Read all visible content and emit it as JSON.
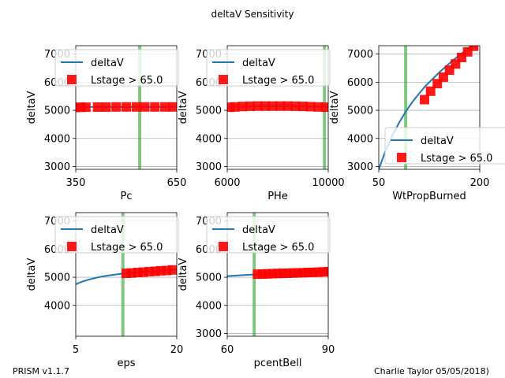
{
  "title": "deltaV Sensitivity",
  "footer_left": "PRISM v1.1.7",
  "footer_right": "Charlie Taylor 05/05/2018)",
  "colors": {
    "line": "#1f77b4",
    "marker": "#ff0000",
    "vline": "#2ca02c",
    "grid": "#b0b0b0"
  },
  "chart_data": [
    {
      "type": "line",
      "xlabel": "Pc",
      "ylabel": "deltaV",
      "xlim": [
        350,
        650
      ],
      "ylim": [
        2900,
        7300
      ],
      "xticks": [
        "350",
        "650"
      ],
      "yticks": [
        "3000",
        "4000",
        "5000",
        "6000",
        "7000"
      ],
      "grid": "horizontal",
      "legend_position": "top-left",
      "vline_x": 540,
      "series": [
        {
          "name": "deltaV",
          "kind": "line",
          "x": [
            350,
            400,
            450,
            500,
            550,
            600,
            650
          ],
          "y": [
            5120,
            5120,
            5120,
            5120,
            5120,
            5120,
            5120
          ]
        },
        {
          "name": "Lstage > 65.0",
          "kind": "marker",
          "x": [
            350,
            365,
            380,
            415,
            440,
            470,
            500,
            530,
            555,
            585,
            615,
            640
          ],
          "y": [
            5100,
            5110,
            5110,
            5115,
            5115,
            5120,
            5120,
            5120,
            5120,
            5120,
            5120,
            5120
          ]
        }
      ]
    },
    {
      "type": "line",
      "xlabel": "PHe",
      "ylabel": "deltaV",
      "xlim": [
        6000,
        10000
      ],
      "ylim": [
        2900,
        7300
      ],
      "xticks": [
        "6000",
        "10000"
      ],
      "yticks": [
        "3000",
        "4000",
        "5000",
        "6000",
        "7000"
      ],
      "grid": "horizontal",
      "legend_position": "top-left",
      "vline_x": 9850,
      "series": [
        {
          "name": "deltaV",
          "kind": "line",
          "x": [
            6000,
            7000,
            8000,
            9000,
            10000
          ],
          "y": [
            5110,
            5140,
            5150,
            5140,
            5110
          ]
        },
        {
          "name": "Lstage > 65.0",
          "kind": "marker",
          "x": [
            6100,
            6300,
            6600,
            6900,
            7200,
            7500,
            7800,
            8100,
            8400,
            8700,
            9000,
            9300,
            9600,
            9900
          ],
          "y": [
            5110,
            5120,
            5135,
            5145,
            5150,
            5150,
            5150,
            5150,
            5150,
            5145,
            5140,
            5130,
            5120,
            5110
          ]
        }
      ]
    },
    {
      "type": "line",
      "xlabel": "WtPropBurned",
      "ylabel": "deltaV",
      "xlim": [
        50,
        200
      ],
      "ylim": [
        2900,
        7300
      ],
      "xticks": [
        "50",
        "200"
      ],
      "yticks": [
        "3000",
        "4000",
        "5000",
        "6000",
        "7000"
      ],
      "grid": "horizontal",
      "legend_position": "lower-right",
      "vline_x": 90,
      "series": [
        {
          "name": "deltaV",
          "kind": "line",
          "x": [
            50,
            60,
            70,
            80,
            90,
            100,
            110,
            120,
            140,
            160,
            180,
            200
          ],
          "y": [
            2900,
            3550,
            4100,
            4550,
            4950,
            5300,
            5600,
            5880,
            6350,
            6780,
            7150,
            7500
          ]
        },
        {
          "name": "Lstage > 65.0",
          "kind": "marker",
          "x": [
            118,
            127,
            137,
            146,
            155,
            164,
            173,
            182,
            191
          ],
          "y": [
            5380,
            5680,
            5950,
            6180,
            6430,
            6650,
            6880,
            7080,
            7280
          ]
        }
      ]
    },
    {
      "type": "line",
      "xlabel": "eps",
      "ylabel": "deltaV",
      "xlim": [
        5,
        20
      ],
      "ylim": [
        2900,
        7300
      ],
      "xticks": [
        "5",
        "20"
      ],
      "yticks": [
        "4000",
        "5000",
        "6000",
        "7000"
      ],
      "grid": "horizontal",
      "legend_position": "top-left",
      "vline_x": 12,
      "series": [
        {
          "name": "deltaV",
          "kind": "line",
          "x": [
            5,
            6,
            7,
            8,
            9,
            10,
            11,
            12,
            14,
            16,
            18,
            20
          ],
          "y": [
            4750,
            4850,
            4920,
            4980,
            5030,
            5070,
            5100,
            5130,
            5170,
            5210,
            5240,
            5270
          ]
        },
        {
          "name": "Lstage > 65.0",
          "kind": "marker",
          "x": [
            12.5,
            13.3,
            14.2,
            15.0,
            15.9,
            16.8,
            17.6,
            18.5,
            19.4
          ],
          "y": [
            5140,
            5150,
            5170,
            5180,
            5200,
            5210,
            5230,
            5240,
            5260
          ]
        }
      ]
    },
    {
      "type": "line",
      "xlabel": "pcentBell",
      "ylabel": "deltaV",
      "xlim": [
        60,
        90
      ],
      "ylim": [
        2900,
        7300
      ],
      "xticks": [
        "60",
        "90"
      ],
      "yticks": [
        "3000",
        "4000",
        "5000",
        "6000",
        "7000"
      ],
      "grid": "horizontal",
      "legend_position": "top-left",
      "vline_x": 68,
      "series": [
        {
          "name": "deltaV",
          "kind": "line",
          "x": [
            60,
            65,
            70,
            75,
            80,
            85,
            90
          ],
          "y": [
            5040,
            5080,
            5110,
            5140,
            5160,
            5180,
            5200
          ]
        },
        {
          "name": "Lstage > 65.0",
          "kind": "marker",
          "x": [
            69,
            70.5,
            72,
            73.5,
            75,
            76.5,
            78,
            79.5,
            81,
            82.5,
            84,
            85.5,
            87,
            88.5,
            90
          ],
          "y": [
            5110,
            5115,
            5120,
            5130,
            5135,
            5140,
            5145,
            5150,
            5155,
            5160,
            5170,
            5175,
            5180,
            5190,
            5200
          ]
        }
      ]
    }
  ]
}
